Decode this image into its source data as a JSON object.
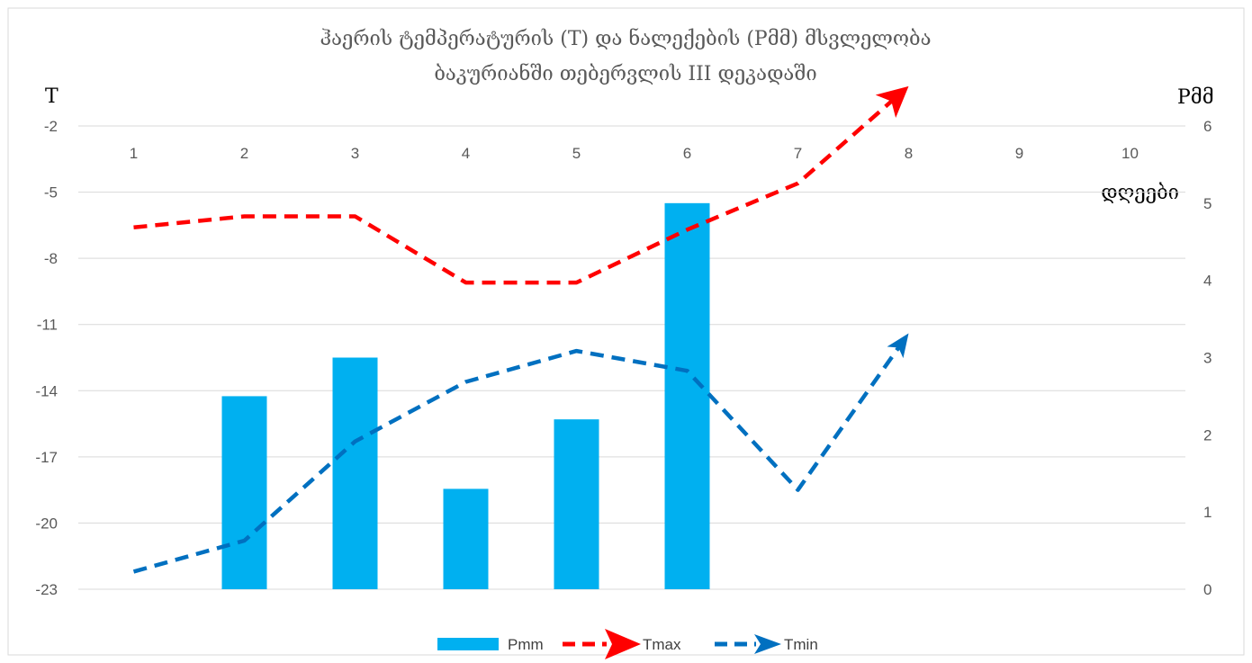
{
  "chart_data": {
    "type": "bar",
    "title_lines": [
      "ჰაერის ტემპერატურის (T) და ნალექების (Pმმ)  მსვლელობა",
      "ბაკურიანში თებერვლის III დეკადაში"
    ],
    "y_left_label": "T",
    "y_right_label": "Pმმ",
    "x_axis_label": "დღეები",
    "categories": [
      "1",
      "2",
      "3",
      "4",
      "5",
      "6",
      "7",
      "8",
      "9",
      "10"
    ],
    "y_left_ticks": [
      "-2",
      "-5",
      "-8",
      "-11",
      "-14",
      "-17",
      "-20",
      "-23"
    ],
    "y_right_ticks": [
      "6",
      "5",
      "4",
      "3",
      "2",
      "1",
      "0"
    ],
    "y_left_range": [
      -23,
      -2
    ],
    "y_right_range": [
      0,
      6
    ],
    "grid": true,
    "legend_position": "bottom",
    "series": [
      {
        "name": "Pmm",
        "kind": "bar",
        "axis": "right",
        "color": "#00b0f0",
        "values": [
          null,
          2.5,
          3.0,
          1.3,
          2.2,
          5.0,
          null,
          null,
          null,
          null
        ]
      },
      {
        "name": "Tmax",
        "kind": "line",
        "axis": "left",
        "color": "#ff0000",
        "values": [
          -6.6,
          -6.1,
          -6.1,
          -9.1,
          -9.1,
          -6.7,
          -4.6,
          -0.2,
          null,
          null
        ]
      },
      {
        "name": "Tmin",
        "kind": "line",
        "axis": "left",
        "color": "#0070c0",
        "values": [
          -22.2,
          -20.8,
          -16.3,
          -13.6,
          -12.2,
          -13.1,
          -18.5,
          -11.4,
          null,
          null
        ]
      }
    ]
  }
}
